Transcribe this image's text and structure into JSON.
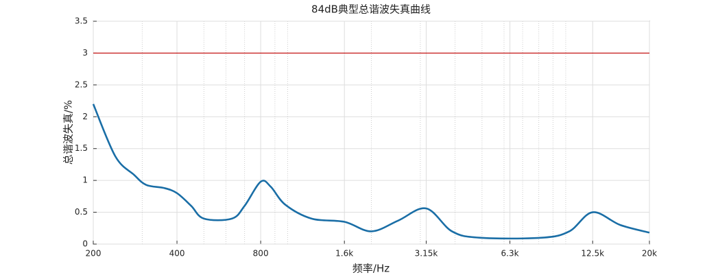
{
  "chart_data": {
    "type": "line",
    "title": "84dB典型总谐波失真曲线",
    "x_label": "频率/Hz",
    "y_label": "总谐波失真/%",
    "x_scale": "log",
    "grid": true,
    "x": [
      200,
      240,
      280,
      310,
      360,
      400,
      450,
      500,
      630,
      700,
      800,
      870,
      980,
      1220,
      1600,
      2000,
      2500,
      3150,
      3900,
      4900,
      8200,
      10300,
      12500,
      15700,
      20000
    ],
    "series": [
      {
        "color": "#1a6ea6",
        "values": [
          2.2,
          1.38,
          1.09,
          0.93,
          0.88,
          0.8,
          0.6,
          0.4,
          0.4,
          0.6,
          0.98,
          0.9,
          0.62,
          0.4,
          0.35,
          0.2,
          0.37,
          0.56,
          0.2,
          0.1,
          0.1,
          0.2,
          0.5,
          0.3,
          0.18
        ]
      }
    ],
    "reference_line": {
      "value": 3,
      "color": "#c00000"
    },
    "xlim": [
      200,
      20000
    ],
    "xticks": [
      200,
      400,
      800,
      {
        "value": 1600,
        "label": "1.6k"
      },
      {
        "value": 3150,
        "label": "3.15k"
      },
      {
        "value": 6300,
        "label": "6.3k"
      },
      {
        "value": 12500,
        "label": "12.5k"
      },
      {
        "value": 20000,
        "label": "20k"
      }
    ],
    "minor_xticks": [
      300,
      500,
      600,
      700,
      900,
      1000,
      2000,
      3000,
      4000,
      5000,
      6000,
      7000,
      8000,
      9000,
      10000
    ],
    "ylim": [
      0,
      3.5
    ],
    "yticks": [
      0,
      0.5,
      1,
      1.5,
      2,
      2.5,
      3,
      3.5
    ]
  }
}
